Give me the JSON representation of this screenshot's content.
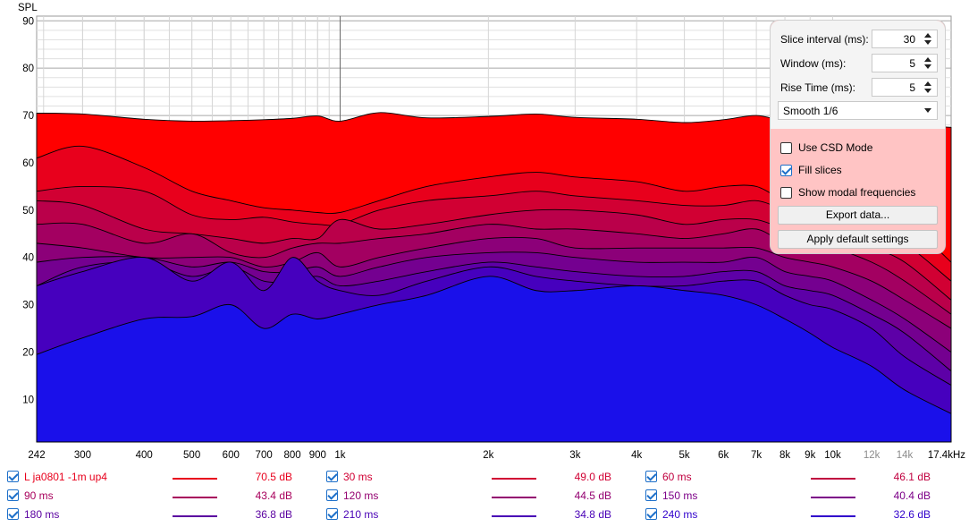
{
  "chart_data": {
    "type": "area",
    "ylabel": "SPL",
    "y_ticks": [
      "90",
      "80",
      "70",
      "60",
      "50",
      "40",
      "30",
      "20",
      "10"
    ],
    "ylim": [
      1,
      91
    ],
    "xlim": [
      242,
      17400
    ],
    "x_scale": "log",
    "x_tick_values": [
      242,
      300,
      400,
      500,
      600,
      700,
      800,
      900,
      1000,
      2000,
      3000,
      4000,
      5000,
      6000,
      7000,
      8000,
      9000,
      10000,
      12000,
      14000,
      17400
    ],
    "x_tick_labels": [
      "242",
      "300",
      "400",
      "500",
      "600",
      "700",
      "800",
      "900",
      "1k",
      "2k",
      "3k",
      "4k",
      "5k",
      "6k",
      "7k",
      "8k",
      "9k",
      "10k",
      "12k",
      "14k",
      "17.4kHz"
    ],
    "x_tick_minor": [
      false,
      false,
      false,
      false,
      false,
      false,
      false,
      false,
      false,
      false,
      false,
      false,
      false,
      false,
      false,
      false,
      false,
      false,
      true,
      true,
      false
    ],
    "grid": true,
    "x": [
      242,
      300,
      400,
      500,
      600,
      700,
      800,
      900,
      1000,
      1200,
      1500,
      2000,
      2500,
      3000,
      4000,
      5000,
      6000,
      7000,
      8000,
      9000,
      10000,
      12000,
      14000,
      17400
    ],
    "series": [
      {
        "name": "L ja0801 -1m up4",
        "color": "#ff0000",
        "values": [
          70.5,
          70.3,
          69.2,
          68.8,
          68.9,
          69.1,
          69.4,
          69.9,
          68.8,
          70.6,
          69.5,
          69.8,
          70.3,
          69.6,
          69.2,
          68.5,
          69.1,
          70.0,
          68.8,
          68.7,
          68.2,
          68.3,
          68.0,
          67.5
        ]
      },
      {
        "name": "30 ms",
        "color": "#e8001c",
        "values": [
          61,
          63.5,
          59,
          54,
          52,
          50.5,
          50,
          49.5,
          49.5,
          52,
          55,
          57,
          58,
          57,
          56,
          54,
          55,
          55,
          52,
          52,
          52,
          51,
          48,
          39
        ]
      },
      {
        "name": "60 ms",
        "color": "#d10033",
        "values": [
          54,
          55,
          54,
          49,
          48,
          48.5,
          47.5,
          47,
          47,
          50,
          52,
          53,
          54,
          53,
          52,
          51,
          51,
          52,
          50,
          49,
          48,
          46,
          43,
          35
        ]
      },
      {
        "name": "90 ms",
        "color": "#ba004a",
        "values": [
          52,
          51,
          46,
          45,
          44,
          43,
          44,
          44,
          48,
          46,
          47,
          49,
          50,
          50,
          49,
          47,
          48,
          48,
          46,
          45,
          44,
          42,
          39,
          31
        ]
      },
      {
        "name": "120 ms",
        "color": "#a30061",
        "values": [
          47,
          47,
          43,
          45,
          41,
          40,
          42,
          43,
          43,
          44,
          45,
          47,
          46,
          46,
          45,
          44,
          45,
          46,
          43,
          42,
          42,
          39,
          35,
          28
        ]
      },
      {
        "name": "150 ms",
        "color": "#8c0079",
        "values": [
          43,
          42,
          40,
          40,
          40,
          38,
          39,
          41,
          38,
          40,
          42,
          44,
          44,
          42,
          42,
          42,
          42,
          42,
          40,
          39,
          38,
          35,
          31,
          25
        ]
      },
      {
        "name": "180 ms",
        "color": "#740090",
        "values": [
          39,
          40,
          40,
          38,
          39,
          37,
          37,
          38,
          36,
          38,
          40,
          41,
          41,
          40,
          39,
          39,
          39,
          40,
          37,
          36,
          35,
          31,
          27,
          20
        ]
      },
      {
        "name": "210 ms",
        "color": "#5d00a7",
        "values": [
          34,
          38,
          39,
          36,
          38,
          35,
          35,
          36,
          34,
          35,
          37,
          39,
          38,
          37,
          36,
          36,
          37,
          37,
          34,
          33,
          32,
          28,
          24,
          16
        ]
      },
      {
        "name": "240 ms",
        "color": "#4600be",
        "values": [
          34,
          37,
          40,
          35,
          39,
          33,
          40,
          35,
          33,
          32,
          35,
          38,
          36,
          35,
          34,
          34,
          35,
          35,
          32,
          30,
          29,
          25,
          19,
          13
        ]
      },
      {
        "name": "",
        "color": "#1a10ea",
        "values": [
          19.5,
          23,
          27,
          27.5,
          30,
          25,
          28,
          27,
          28,
          30,
          32,
          36,
          33,
          33,
          34,
          33,
          32,
          30,
          27,
          24,
          21,
          17,
          12,
          7
        ]
      }
    ]
  },
  "panel": {
    "slice_interval_label": "Slice interval (ms):",
    "slice_interval_value": "30",
    "window_label": "Window (ms):",
    "window_value": "5",
    "rise_time_label": "Rise Time (ms):",
    "rise_time_value": "5",
    "smoothing_value": "Smooth 1/6",
    "csd_label": "Use CSD Mode",
    "csd_checked": false,
    "fill_label": "Fill slices",
    "fill_checked": true,
    "modal_label": "Show modal frequencies",
    "modal_checked": false,
    "export_label": "Export data...",
    "defaults_label": "Apply default settings"
  },
  "legend": [
    {
      "name": "L ja0801 -1m up4",
      "value": "70.5 dB",
      "color": "#e8001c"
    },
    {
      "name": "30 ms",
      "value": "49.0 dB",
      "color": "#d10033"
    },
    {
      "name": "60 ms",
      "value": "46.1 dB",
      "color": "#c0003f"
    },
    {
      "name": "90 ms",
      "value": "43.4 dB",
      "color": "#a8005c"
    },
    {
      "name": "120 ms",
      "value": "44.5 dB",
      "color": "#930070"
    },
    {
      "name": "150 ms",
      "value": "40.4 dB",
      "color": "#7c0088"
    },
    {
      "name": "180 ms",
      "value": "36.8 dB",
      "color": "#5a00a0"
    },
    {
      "name": "210 ms",
      "value": "34.8 dB",
      "color": "#4800b6"
    },
    {
      "name": "240 ms",
      "value": "32.6 dB",
      "color": "#3000cc"
    }
  ]
}
